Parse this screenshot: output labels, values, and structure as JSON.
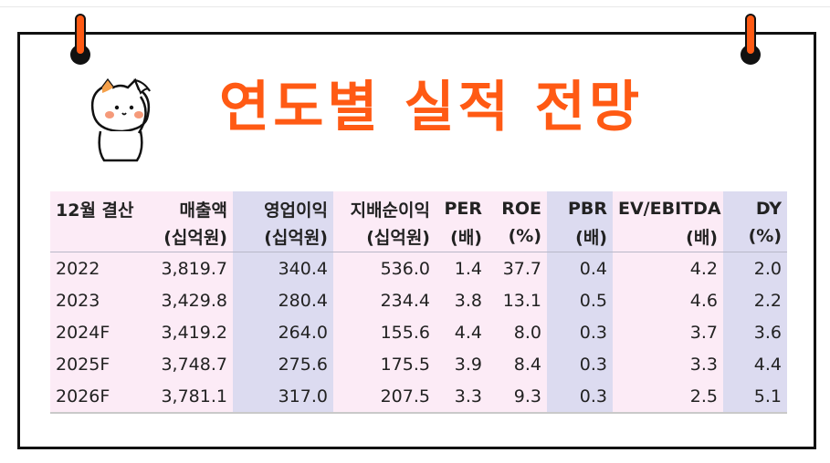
{
  "title": "연도별 실적 전망",
  "colors": {
    "title": "#ff5a14",
    "pin": "#ff5a14",
    "pink": "#fcebf6",
    "lavender": "#dcdbf0"
  },
  "icons": {
    "mascot": "cat-saluting-icon",
    "pin": "pin-icon"
  },
  "table": {
    "headers": [
      {
        "line1": "12월 결산",
        "line2": ""
      },
      {
        "line1": "매출액",
        "line2": "(십억원)"
      },
      {
        "line1": "영업이익",
        "line2": "(십억원)"
      },
      {
        "line1": "지배순이익",
        "line2": "(십억원)"
      },
      {
        "line1": "PER",
        "line2": "(배)"
      },
      {
        "line1": "ROE",
        "line2": "(%)"
      },
      {
        "line1": "PBR",
        "line2": "(배)"
      },
      {
        "line1": "EV/EBITDA",
        "line2": "(배)"
      },
      {
        "line1": "DY",
        "line2": "(%)"
      }
    ],
    "rows": [
      [
        "2022",
        "3,819.7",
        "340.4",
        "536.0",
        "1.4",
        "37.7",
        "0.4",
        "4.2",
        "2.0"
      ],
      [
        "2023",
        "3,429.8",
        "280.4",
        "234.4",
        "3.8",
        "13.1",
        "0.5",
        "4.6",
        "2.2"
      ],
      [
        "2024F",
        "3,419.2",
        "264.0",
        "155.6",
        "4.4",
        "8.0",
        "0.3",
        "3.7",
        "3.6"
      ],
      [
        "2025F",
        "3,748.7",
        "275.6",
        "175.5",
        "3.9",
        "8.4",
        "0.3",
        "3.3",
        "4.4"
      ],
      [
        "2026F",
        "3,781.1",
        "317.0",
        "207.5",
        "3.3",
        "9.3",
        "0.3",
        "2.5",
        "5.1"
      ]
    ]
  }
}
